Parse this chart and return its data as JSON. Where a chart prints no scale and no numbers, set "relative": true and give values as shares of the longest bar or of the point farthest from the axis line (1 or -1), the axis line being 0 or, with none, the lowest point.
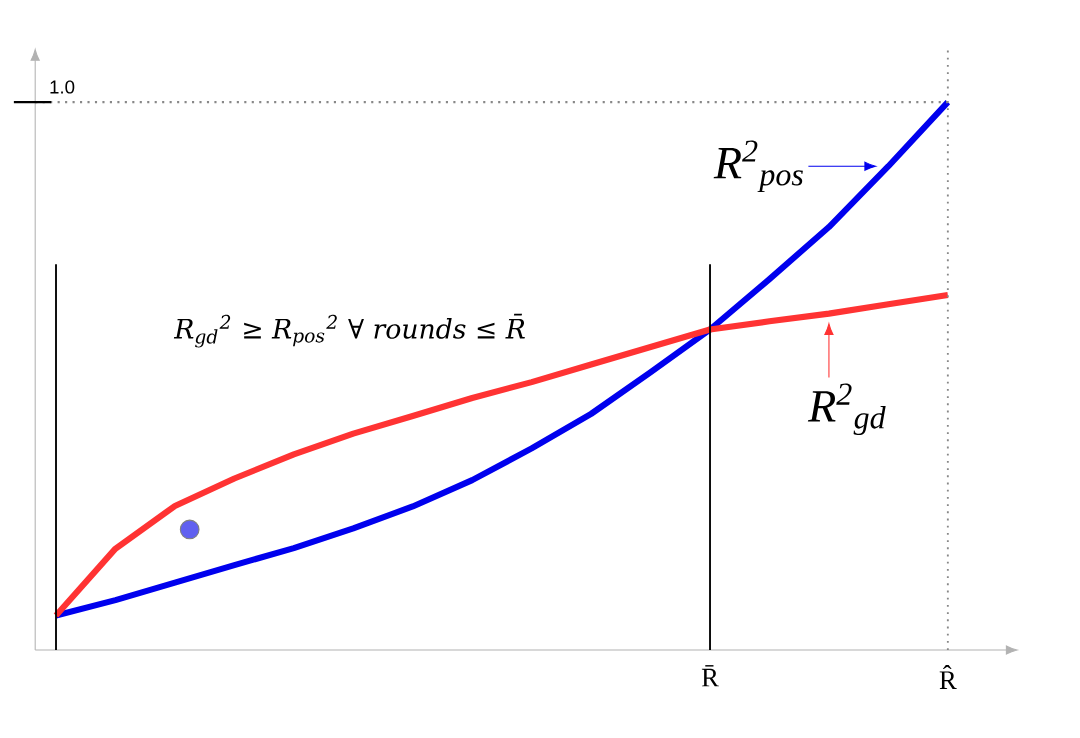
{
  "chart_data": {
    "type": "line",
    "relative": true,
    "categories": [
      null,
      null,
      null,
      null,
      null,
      null,
      null,
      null,
      null,
      null,
      null,
      "R̄",
      null,
      null,
      null,
      "R̂"
    ],
    "series": [
      {
        "name": "R$^{2}$$_{pos}$",
        "color": "#0000ee",
        "values": [
          0.063,
          0.091,
          0.123,
          0.155,
          0.186,
          0.222,
          0.262,
          0.31,
          0.368,
          0.431,
          0.507,
          0.585,
          0.677,
          0.772,
          0.883,
          1.0
        ]
      },
      {
        "name": "R$^{2}$$_{gd}$",
        "color": "#ff3333",
        "values": [
          0.063,
          0.185,
          0.263,
          0.313,
          0.357,
          0.395,
          0.427,
          0.46,
          0.489,
          0.521,
          0.553,
          0.585,
          0.6,
          0.614,
          0.631,
          0.648
        ]
      }
    ],
    "ref_lines": [
      {
        "axis": "y",
        "value": 1,
        "label": "1.0",
        "line_style": "dotted",
        "color": "#888888"
      },
      {
        "axis": "x",
        "value": null,
        "line_style": "solid",
        "color": "#000000"
      },
      {
        "axis": "x",
        "value": "R̄",
        "line_style": "solid",
        "color": "#000000"
      },
      {
        "axis": "x",
        "value": "R̂",
        "line_style": "dotted",
        "color": "#888888"
      }
    ],
    "annotations": [
      "R$_{gd}$$^{2}$ ≥ R$_{pos}$$^{2}$ ∀ rounds ≤ R̄"
    ],
    "marker": "none",
    "line_style": "solid"
  }
}
